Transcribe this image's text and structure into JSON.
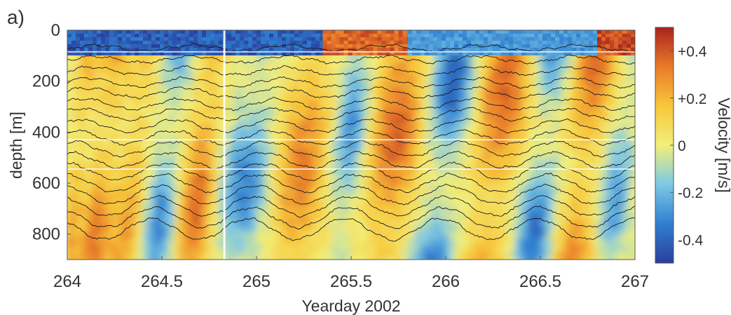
{
  "panel_label": "a)",
  "chart_data": {
    "type": "heatmap",
    "title": "",
    "xlabel": "Yearday 2002",
    "ylabel": "depth  [m]",
    "xlim": [
      264,
      267
    ],
    "ylim": [
      0,
      900
    ],
    "y_inverted": true,
    "x_ticks": [
      264,
      264.5,
      265,
      265.5,
      266,
      266.5,
      267
    ],
    "x_tick_labels": [
      "264",
      "264.5",
      "265",
      "265.5",
      "266",
      "266.5",
      "267"
    ],
    "y_ticks": [
      0,
      200,
      400,
      600,
      800
    ],
    "y_tick_labels": [
      "0",
      "200",
      "400",
      "600",
      "800"
    ],
    "colorbar": {
      "label": "Velocity  [m/s]",
      "range": [
        -0.5,
        0.5
      ],
      "ticks": [
        0.4,
        0.2,
        0,
        -0.2,
        -0.4
      ],
      "tick_labels": [
        "+0.4",
        "+0.2",
        "0",
        "-0.2",
        "-0.4"
      ],
      "colors": [
        "#2a3f9c",
        "#2f7fd0",
        "#7cc8e6",
        "#f2ef7a",
        "#f7c73a",
        "#ea7a2a",
        "#a8231e"
      ]
    },
    "velocity_bands": [
      {
        "x_start": 264.0,
        "x_end": 264.12,
        "sign": "positive",
        "peak": 0.25
      },
      {
        "x_start": 264.12,
        "x_end": 264.28,
        "sign": "positive",
        "peak": 0.3
      },
      {
        "x_start": 264.28,
        "x_end": 264.45,
        "sign": "positive",
        "peak": 0.25
      },
      {
        "x_start": 264.45,
        "x_end": 264.62,
        "sign": "negative",
        "peak": -0.3
      },
      {
        "x_start": 264.62,
        "x_end": 264.82,
        "sign": "positive",
        "peak": 0.35
      },
      {
        "x_start": 264.82,
        "x_end": 265.1,
        "sign": "negative",
        "peak": -0.3
      },
      {
        "x_start": 265.1,
        "x_end": 265.4,
        "sign": "positive",
        "peak": 0.3
      },
      {
        "x_start": 265.4,
        "x_end": 265.58,
        "sign": "negative",
        "peak": -0.3
      },
      {
        "x_start": 265.58,
        "x_end": 265.88,
        "sign": "positive",
        "peak": 0.35
      },
      {
        "x_start": 265.88,
        "x_end": 266.12,
        "sign": "negative",
        "peak": -0.4
      },
      {
        "x_start": 266.12,
        "x_end": 266.42,
        "sign": "positive",
        "peak": 0.35
      },
      {
        "x_start": 266.42,
        "x_end": 266.62,
        "sign": "negative",
        "peak": -0.35
      },
      {
        "x_start": 266.62,
        "x_end": 266.85,
        "sign": "positive",
        "peak": 0.35
      },
      {
        "x_start": 266.85,
        "x_end": 267.0,
        "sign": "negative",
        "peak": -0.25
      }
    ],
    "surface_layer": {
      "depth_range": [
        0,
        90
      ],
      "segments": [
        {
          "x_start": 264.0,
          "x_end": 265.35,
          "sign": "negative",
          "peak": -0.45
        },
        {
          "x_start": 265.35,
          "x_end": 265.8,
          "sign": "positive",
          "peak": 0.4
        },
        {
          "x_start": 265.8,
          "x_end": 266.8,
          "sign": "negative",
          "peak": -0.3
        },
        {
          "x_start": 266.8,
          "x_end": 267.0,
          "sign": "positive",
          "peak": 0.45
        }
      ]
    },
    "isopycnals": {
      "mean_depths": [
        70,
        115,
        160,
        205,
        245,
        290,
        330,
        375,
        420,
        465,
        510,
        555,
        600,
        645,
        690,
        735,
        780
      ]
    },
    "data_gaps": {
      "x": [
        264.83
      ],
      "depth": [
        85,
        430,
        545
      ]
    }
  }
}
